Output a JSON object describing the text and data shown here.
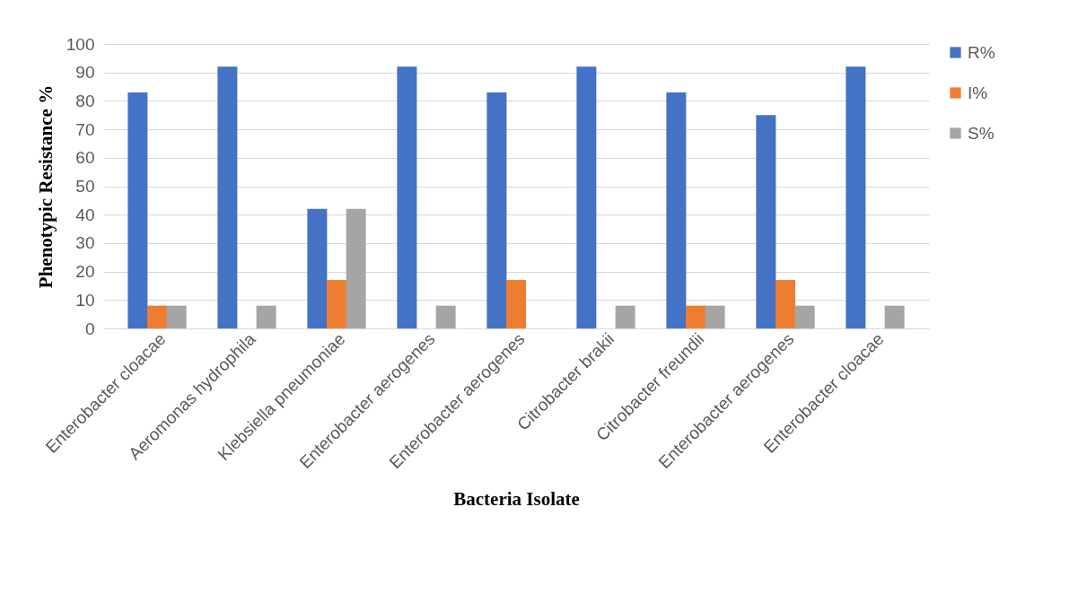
{
  "chart_data": {
    "type": "bar",
    "xlabel": "Bacteria Isolate",
    "ylabel": "Phenotypic Resistance %",
    "categories": [
      "Enterobacter cloacae",
      "Aeromonas hydrophila",
      "Klebsiella pneumoniae",
      "Enterobacter aerogenes",
      "Enterobacter aerogenes",
      "Citrobacter brakii",
      "Citrobacter freundii",
      "Enterobacter aerogenes",
      "Enterobacter cloacae"
    ],
    "series": [
      {
        "name": "R%",
        "color": "#4472c4",
        "values": [
          83,
          92,
          42,
          92,
          83,
          92,
          83,
          75,
          92
        ]
      },
      {
        "name": "I%",
        "color": "#ed7d31",
        "values": [
          8,
          null,
          17,
          null,
          17,
          null,
          8,
          17,
          null
        ]
      },
      {
        "name": "S%",
        "color": "#a5a5a5",
        "values": [
          8,
          8,
          42,
          8,
          null,
          8,
          8,
          8,
          8
        ]
      }
    ],
    "ylim": [
      0,
      100
    ],
    "yticks": [
      0,
      10,
      20,
      30,
      40,
      50,
      60,
      70,
      80,
      90,
      100
    ],
    "grid": "y",
    "legend": "right"
  }
}
